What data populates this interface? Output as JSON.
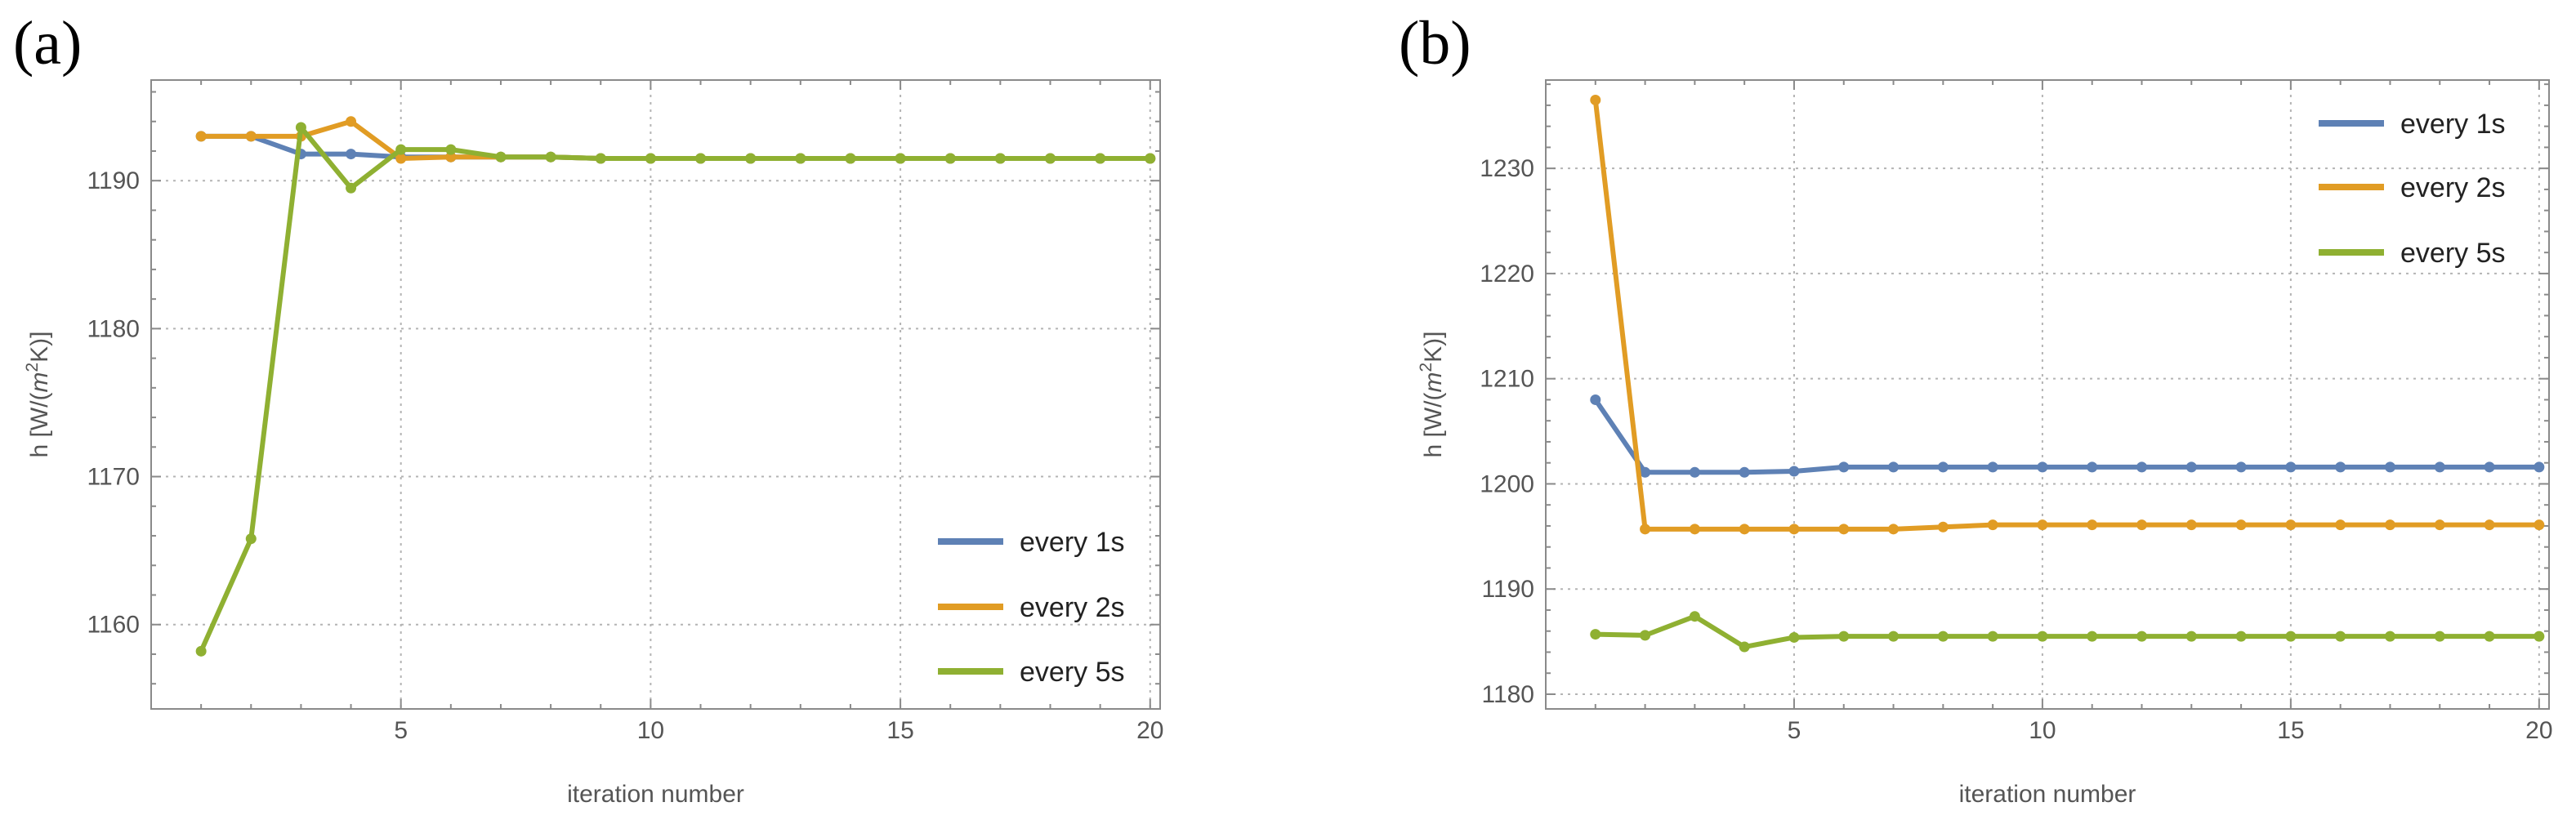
{
  "chart_data": [
    {
      "type": "line",
      "panel_label": "(a)",
      "xlabel": "iteration number",
      "ylabel": "h [W/(m²K)]",
      "ylabel_parts": {
        "prefix": "h [W/(",
        "base": "m",
        "sup": "2",
        "suffix": "K)]"
      },
      "xlim": [
        0,
        20.2
      ],
      "ylim": [
        1154.3,
        1196.8
      ],
      "xticks": [
        5,
        10,
        15,
        20
      ],
      "xtick_labels": [
        "5",
        "10",
        "15",
        "20"
      ],
      "yticks": [
        1160,
        1170,
        1180,
        1190
      ],
      "ytick_labels": [
        "1160",
        "1170",
        "1180",
        "1190"
      ],
      "grid": true,
      "legend_position": "bottom-right",
      "x": [
        1,
        2,
        3,
        4,
        5,
        6,
        7,
        8,
        9,
        10,
        11,
        12,
        13,
        14,
        15,
        16,
        17,
        18,
        19,
        20
      ],
      "series": [
        {
          "name": "every 1s",
          "color": "#5e81b5",
          "values": [
            1193.0,
            1193.0,
            1191.8,
            1191.8,
            1191.6,
            1191.6,
            1191.6,
            1191.6,
            1191.5,
            1191.5,
            1191.5,
            1191.5,
            1191.5,
            1191.5,
            1191.5,
            1191.5,
            1191.5,
            1191.5,
            1191.5,
            1191.5
          ]
        },
        {
          "name": "every 2s",
          "color": "#e19c24",
          "values": [
            1193.0,
            1193.0,
            1193.0,
            1194.0,
            1191.5,
            1191.6,
            1191.6,
            1191.6,
            1191.5,
            1191.5,
            1191.5,
            1191.5,
            1191.5,
            1191.5,
            1191.5,
            1191.5,
            1191.5,
            1191.5,
            1191.5,
            1191.5
          ]
        },
        {
          "name": "every 5s",
          "color": "#8fb032",
          "values": [
            1158.2,
            1165.8,
            1193.6,
            1189.5,
            1192.1,
            1192.1,
            1191.6,
            1191.6,
            1191.5,
            1191.5,
            1191.5,
            1191.5,
            1191.5,
            1191.5,
            1191.5,
            1191.5,
            1191.5,
            1191.5,
            1191.5,
            1191.5
          ]
        }
      ]
    },
    {
      "type": "line",
      "panel_label": "(b)",
      "xlabel": "iteration number",
      "ylabel": "h [W/(m²K)]",
      "ylabel_parts": {
        "prefix": "h [W/(",
        "base": "m",
        "sup": "2",
        "suffix": "K)]"
      },
      "xlim": [
        0,
        20.2
      ],
      "ylim": [
        1178.6,
        1238.4
      ],
      "xticks": [
        5,
        10,
        15,
        20
      ],
      "xtick_labels": [
        "5",
        "10",
        "15",
        "20"
      ],
      "yticks": [
        1180,
        1190,
        1200,
        1210,
        1220,
        1230
      ],
      "ytick_labels": [
        "1180",
        "1190",
        "1200",
        "1210",
        "1220",
        "1230"
      ],
      "grid": true,
      "legend_position": "top-right",
      "x": [
        1,
        2,
        3,
        4,
        5,
        6,
        7,
        8,
        9,
        10,
        11,
        12,
        13,
        14,
        15,
        16,
        17,
        18,
        19,
        20
      ],
      "series": [
        {
          "name": "every 1s",
          "color": "#5e81b5",
          "values": [
            1208.0,
            1201.1,
            1201.1,
            1201.1,
            1201.2,
            1201.6,
            1201.6,
            1201.6,
            1201.6,
            1201.6,
            1201.6,
            1201.6,
            1201.6,
            1201.6,
            1201.6,
            1201.6,
            1201.6,
            1201.6,
            1201.6,
            1201.6
          ]
        },
        {
          "name": "every 2s",
          "color": "#e19c24",
          "values": [
            1236.5,
            1195.7,
            1195.7,
            1195.7,
            1195.7,
            1195.7,
            1195.7,
            1195.9,
            1196.1,
            1196.1,
            1196.1,
            1196.1,
            1196.1,
            1196.1,
            1196.1,
            1196.1,
            1196.1,
            1196.1,
            1196.1,
            1196.1
          ]
        },
        {
          "name": "every 5s",
          "color": "#8fb032",
          "values": [
            1185.7,
            1185.6,
            1187.4,
            1184.5,
            1185.4,
            1185.5,
            1185.5,
            1185.5,
            1185.5,
            1185.5,
            1185.5,
            1185.5,
            1185.5,
            1185.5,
            1185.5,
            1185.5,
            1185.5,
            1185.5,
            1185.5,
            1185.5
          ]
        }
      ]
    }
  ]
}
